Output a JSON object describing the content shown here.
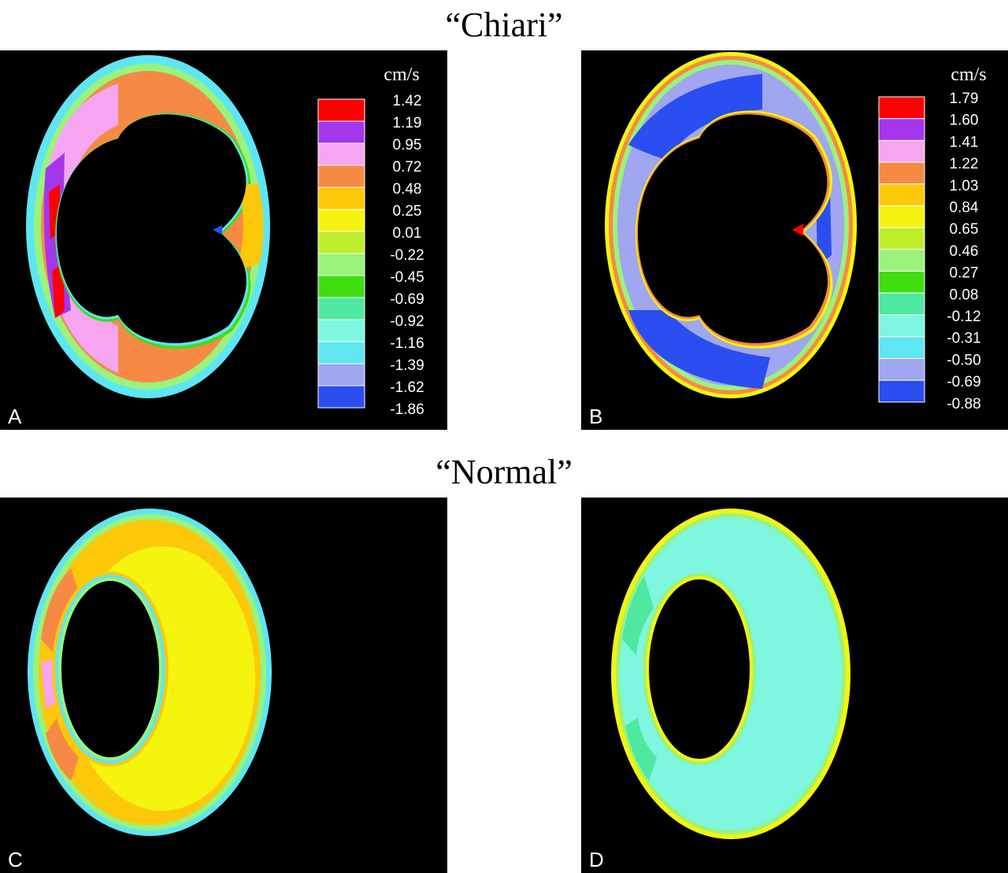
{
  "sections": {
    "chiari_title": "“Chiari”",
    "normal_title": "“Normal”"
  },
  "panels": [
    {
      "id": "A",
      "letter": "A"
    },
    {
      "id": "B",
      "letter": "B"
    },
    {
      "id": "C",
      "letter": "C"
    },
    {
      "id": "D",
      "letter": "D"
    }
  ],
  "chart_data": [
    {
      "type": "heatmap",
      "panel": "A",
      "colorbar": {
        "unit": "cm/s",
        "ticks": [
          "1.42",
          "1.19",
          "0.95",
          "0.72",
          "0.48",
          "0.25",
          "0.01",
          "-0.22",
          "-0.45",
          "-0.69",
          "-0.92",
          "-1.16",
          "-1.39",
          "-1.62",
          "-1.86"
        ],
        "colors": [
          "#ff0000",
          "#a436ec",
          "#f6a6f0",
          "#f68a45",
          "#fdc80a",
          "#f4f40f",
          "#bfee2c",
          "#9af37a",
          "#3ede10",
          "#4ee8a0",
          "#7ef6e0",
          "#5ee6f2",
          "#a0a6f0",
          "#2a4ef0",
          "#ffffff"
        ]
      }
    },
    {
      "type": "heatmap",
      "panel": "B",
      "colorbar": {
        "unit": "cm/s",
        "ticks": [
          "1.79",
          "1.60",
          "1.41",
          "1.22",
          "1.03",
          "0.84",
          "0.65",
          "0.46",
          "0.27",
          "0.08",
          "-0.12",
          "-0.31",
          "-0.50",
          "-0.69",
          "-0.88"
        ],
        "colors": [
          "#ff0000",
          "#a436ec",
          "#f6a6f0",
          "#f68a45",
          "#fdc80a",
          "#f4f40f",
          "#bfee2c",
          "#9af37a",
          "#3ede10",
          "#4ee8a0",
          "#7ef6e0",
          "#5ee6f2",
          "#a0a6f0",
          "#2a4ef0",
          "#ffffff"
        ]
      }
    },
    {
      "type": "heatmap",
      "panel": "C"
    },
    {
      "type": "heatmap",
      "panel": "D"
    }
  ]
}
